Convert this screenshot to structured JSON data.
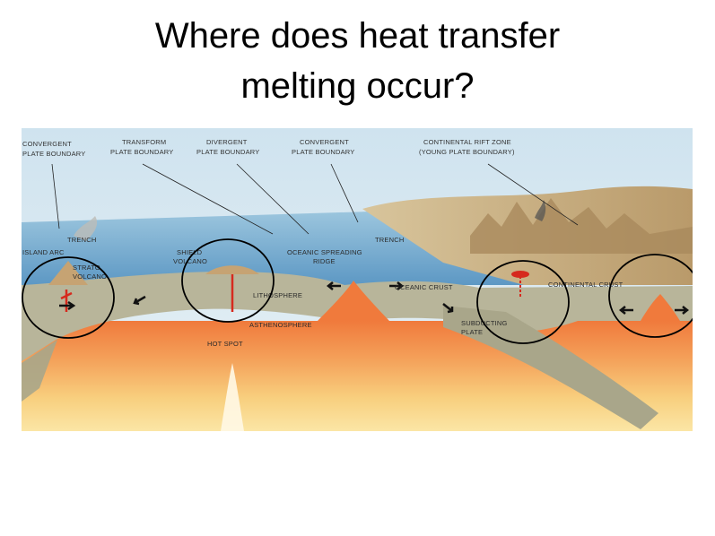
{
  "slide": {
    "title_line1": "Where does heat transfer",
    "title_line2": "melting occur?"
  },
  "diagram": {
    "labels": {
      "convergent_left_1": "CONVERGENT",
      "convergent_left_2": "PLATE BOUNDARY",
      "transform_1": "TRANSFORM",
      "transform_2": "PLATE BOUNDARY",
      "divergent_1": "DIVERGENT",
      "divergent_2": "PLATE BOUNDARY",
      "convergent_mid_1": "CONVERGENT",
      "convergent_mid_2": "PLATE BOUNDARY",
      "rift_1": "CONTINENTAL RIFT ZONE",
      "rift_2": "(YOUNG PLATE BOUNDARY)",
      "trench_left": "TRENCH",
      "island_arc": "ISLAND ARC",
      "strato_1": "STRATO",
      "strato_2": "VOLCANO",
      "shield_1": "SHIELD",
      "shield_2": "VOLCANO",
      "ridge_1": "OCEANIC SPREADING",
      "ridge_2": "RIDGE",
      "trench_right": "TRENCH",
      "lithosphere": "LITHOSPHERE",
      "oceanic_crust": "OCEANIC CRUST",
      "continental_crust": "CONTINENTAL CRUST",
      "asthenosphere": "ASTHENOSPHERE",
      "subducting_1": "SUBDUCTING",
      "subducting_2": "PLATE",
      "hot_spot": "HOT SPOT"
    },
    "colors": {
      "sky": "#d9e9f2",
      "ocean": "#7fb5d6",
      "lithosphere": "#b8b59a",
      "asthenosphere": "#f2894a",
      "mantle_deep": "#f9d98a",
      "magma": "#d62a1e",
      "circle": "#000000"
    }
  }
}
